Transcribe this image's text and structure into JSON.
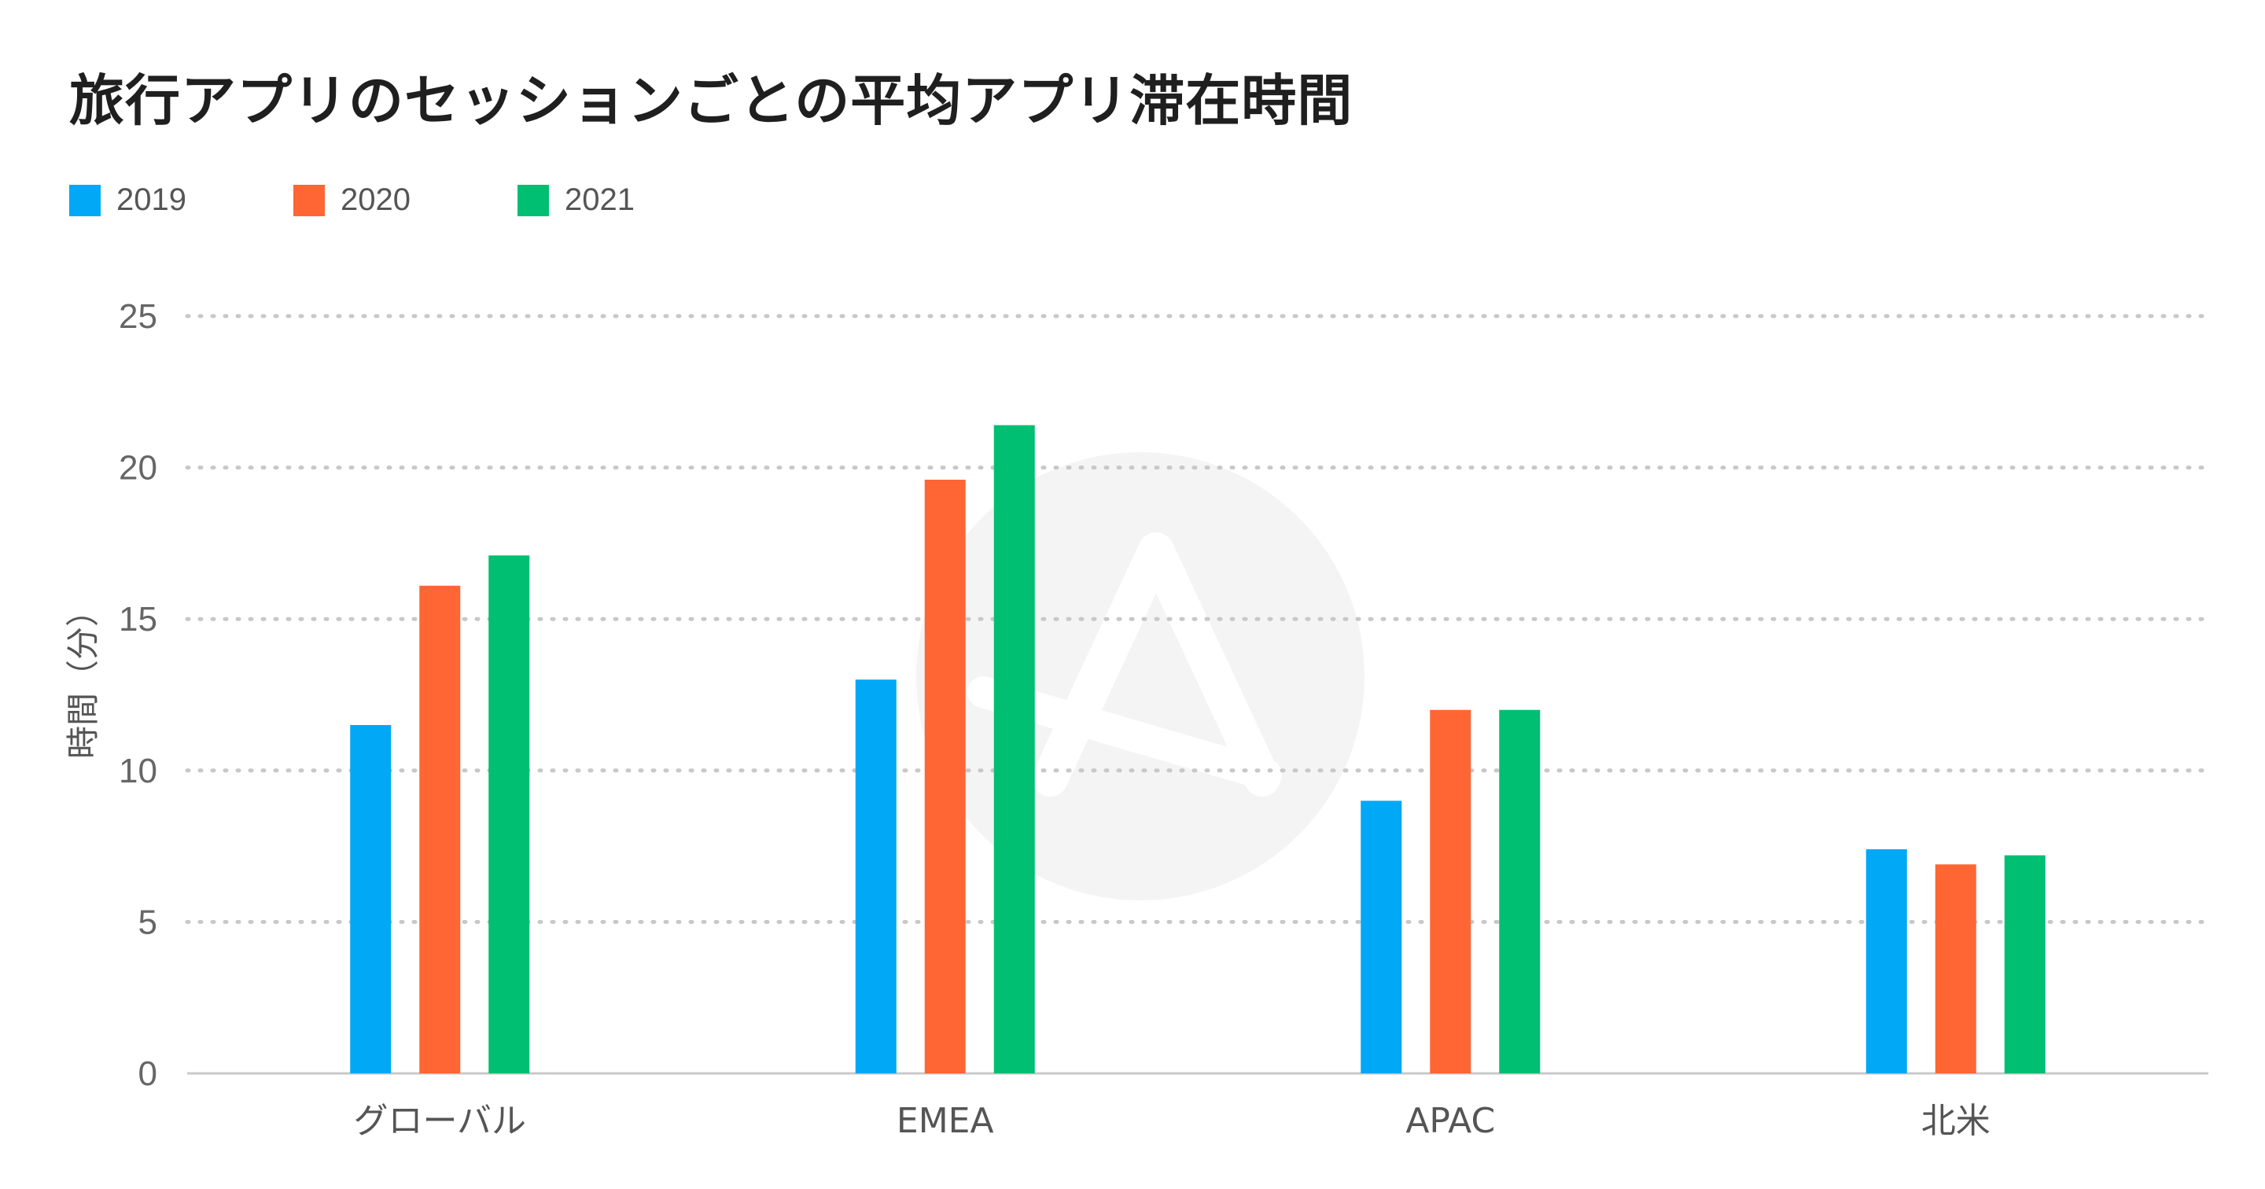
{
  "chart_data": {
    "type": "bar",
    "title": "旅行アプリのセッションごとの平均アプリ滞在時間",
    "xlabel": "",
    "ylabel": "時間（分）",
    "ylim": [
      0,
      25
    ],
    "yticks": [
      0,
      5,
      10,
      15,
      20,
      25
    ],
    "grid": true,
    "legend_position": "top-left",
    "categories": [
      "グローバル",
      "EMEA",
      "APAC",
      "北米"
    ],
    "series": [
      {
        "name": "2019",
        "color": "#00A8F5",
        "values": [
          11.5,
          13.0,
          9.0,
          7.4
        ]
      },
      {
        "name": "2020",
        "color": "#FF6633",
        "values": [
          16.1,
          19.6,
          12.0,
          6.9
        ]
      },
      {
        "name": "2021",
        "color": "#00BF72",
        "values": [
          17.1,
          21.4,
          12.0,
          7.2
        ]
      }
    ]
  }
}
